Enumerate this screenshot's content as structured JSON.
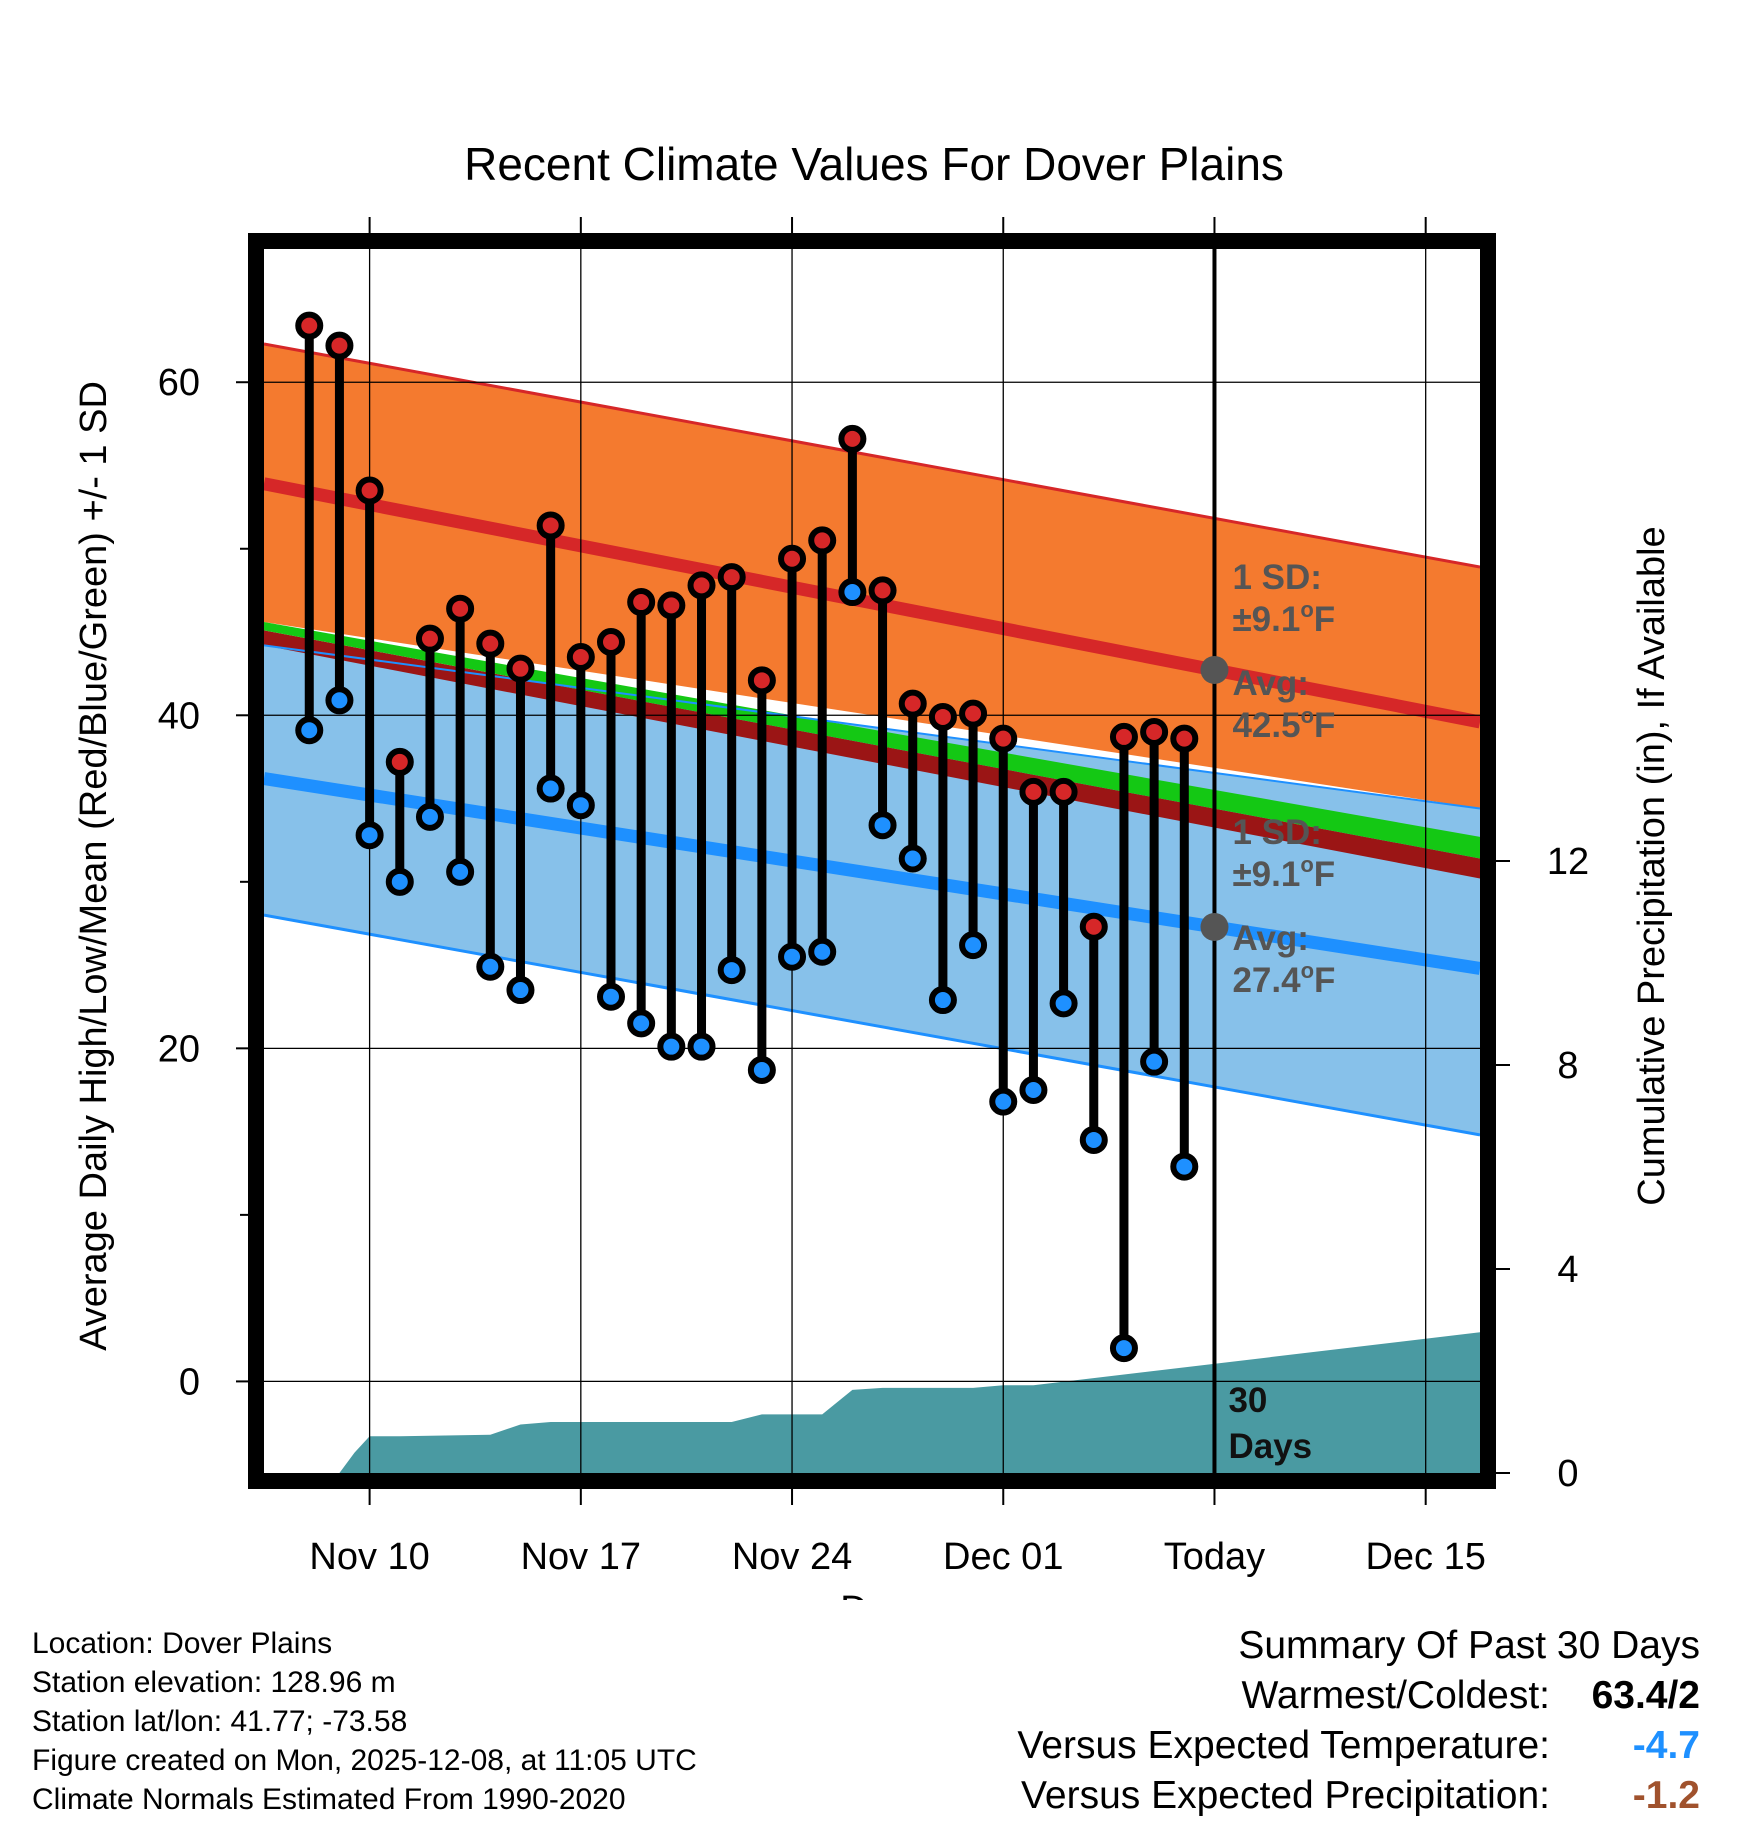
{
  "chart_data": {
    "type": "line",
    "title": "Recent Climate Values For Dover Plains",
    "xlabel": "Day",
    "ylabel": "Average Daily High/Low/Mean (Red/Blue/Green) +/- 1 SD",
    "y2label": "Cumulative Precipitation (in), If Available",
    "x_tick_labels": [
      "Nov 10",
      "Nov 17",
      "Nov 24",
      "Dec 01",
      "Today",
      "Dec 15"
    ],
    "x_tick_days": [
      3,
      10,
      17,
      24,
      31,
      38
    ],
    "x_range_days": [
      -0.5,
      39.8
    ],
    "ylim": [
      -5.5,
      68
    ],
    "y_ticks": [
      0,
      20,
      40,
      60
    ],
    "y_tick_labels": [
      "0",
      "20",
      "40",
      "60"
    ],
    "y2lim": [
      0,
      24
    ],
    "y2_ticks": [
      0,
      4,
      8,
      12
    ],
    "y2_tick_labels": [
      "0",
      "4",
      "8",
      "12"
    ],
    "normals": {
      "high_mean": [
        53.9,
        39.6
      ],
      "high_upper": [
        62.3,
        48.9
      ],
      "high_lower": [
        45.6,
        34.4
      ],
      "low_mean": [
        36.2,
        24.8
      ],
      "low_upper": [
        44.2,
        34.4
      ],
      "low_lower": [
        28.0,
        14.8
      ],
      "mean_upper": [
        45.6,
        32.7
      ],
      "mean_lower": [
        45.1,
        31.4
      ],
      "dark_red_lower": [
        44.2,
        30.2
      ]
    },
    "daily_days": [
      1,
      2,
      3,
      4,
      5,
      6,
      7,
      8,
      9,
      10,
      11,
      12,
      13,
      14,
      15,
      16,
      17,
      18,
      19,
      20,
      21,
      22,
      23,
      24,
      25,
      26,
      27,
      28,
      29,
      30
    ],
    "series": [
      {
        "name": "Daily High",
        "color": "#d62728",
        "values": [
          63.4,
          62.2,
          53.5,
          37.2,
          44.6,
          46.4,
          44.3,
          42.8,
          51.4,
          43.5,
          44.4,
          46.8,
          46.6,
          47.8,
          48.3,
          42.1,
          49.4,
          50.5,
          56.6,
          47.5,
          40.7,
          39.9,
          40.1,
          38.6,
          35.4,
          35.4,
          27.3,
          38.7,
          39.0,
          38.6
        ]
      },
      {
        "name": "Daily Low",
        "color": "#1e90ff",
        "values": [
          39.1,
          40.9,
          32.8,
          30.0,
          33.9,
          30.6,
          24.9,
          23.5,
          35.6,
          34.6,
          23.1,
          21.5,
          20.1,
          20.1,
          24.7,
          18.7,
          25.5,
          25.8,
          47.4,
          33.4,
          31.4,
          22.9,
          26.2,
          16.8,
          17.5,
          22.7,
          14.5,
          2.0,
          19.2,
          12.9
        ]
      }
    ],
    "precip_days": [
      -0.5,
      0,
      0.5,
      1,
      1.5,
      2,
      2.5,
      3,
      4,
      5,
      6,
      7,
      8,
      9,
      10,
      11,
      12,
      13,
      14,
      15,
      16,
      17,
      18,
      19,
      20,
      21,
      22,
      23,
      24,
      25,
      39.8
    ],
    "precip_cum": [
      0,
      0,
      0,
      0,
      0,
      0,
      0.4,
      0.72,
      0.72,
      0.73,
      0.74,
      0.75,
      0.95,
      1.0,
      1.0,
      1.0,
      1.0,
      1.0,
      1.0,
      1.0,
      1.15,
      1.15,
      1.15,
      1.63,
      1.67,
      1.67,
      1.67,
      1.67,
      1.72,
      1.72,
      2.76
    ],
    "today_day": 31,
    "annotations": {
      "high_sd_label": "1 SD:",
      "high_sd_value": "±9.1",
      "high_avg_label": "Avg:",
      "high_avg_value": "42.5",
      "low_sd_label": "1 SD:",
      "low_sd_value": "±9.1",
      "low_avg_label": "Avg:",
      "low_avg_value": "27.4",
      "degree_symbol": "o",
      "unit_letter": "F",
      "days_count": "30",
      "days_word": "Days"
    }
  },
  "colors": {
    "high_band": "#f47a2f",
    "high_line": "#d62728",
    "low_band": "#87c1ea",
    "low_line": "#1e90ff",
    "mean_band": "#14c814",
    "dark_red_band": "#9b1515",
    "precip_fill": "#4a9aa2",
    "grid": "#000000"
  },
  "meta": {
    "location": "Location: Dover Plains",
    "elevation": "Station elevation: 128.96 m",
    "latlon": "Station lat/lon: 41.77; -73.58",
    "created": "Figure created on Mon, 2025-12-08, at 11:05 UTC",
    "normals": "Climate Normals Estimated From 1990-2020"
  },
  "summary": {
    "title": "Summary Of Past 30 Days",
    "warmest_label": "Warmest/Coldest:",
    "warmest_value": "63.4/2",
    "temp_label": "Versus Expected Temperature:",
    "temp_value": "-4.7",
    "precip_label": "Versus Expected Precipitation:",
    "precip_value": "-1.2"
  }
}
